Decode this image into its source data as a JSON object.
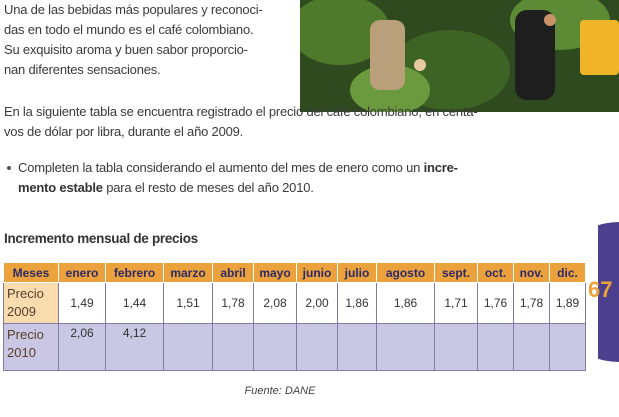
{
  "intro": {
    "lines": [
      "Una de las bebidas más populares y reconoci-",
      "das en todo el mundo es el café colombiano.",
      "Su exquisito aroma y buen sabor proporcio-",
      "nan diferentes sensaciones."
    ]
  },
  "paragraph": {
    "lines": [
      "En la siguiente tabla se encuentra registrado el precio del café colombiano, en centa-",
      "vos de dólar por libra, durante el año 2009."
    ]
  },
  "bullet": {
    "lines": [
      [
        {
          "text": "Completen la tabla considerando el aumento del mes de enero como un "
        },
        {
          "text": "incre-",
          "bold": true
        }
      ],
      [
        {
          "text": "mento estable",
          "bold": true
        },
        {
          "text": " para el resto de meses del año 2010."
        }
      ]
    ]
  },
  "table": {
    "title": "Incremento mensual de precios",
    "header": [
      "Meses",
      "enero",
      "febrero",
      "marzo",
      "abril",
      "mayo",
      "junio",
      "julio",
      "agosto",
      "sept.",
      "oct.",
      "nov.",
      "dic."
    ],
    "rows": [
      [
        "Precio 2009",
        "1,49",
        "1,44",
        "1,51",
        "1,78",
        "2,08",
        "2,00",
        "1,86",
        "1,86",
        "1,71",
        "1,76",
        "1,78",
        "1,89"
      ],
      [
        "Precio 2010",
        "2,06",
        "4,12"
      ]
    ],
    "source": "Fuente: DANE"
  },
  "page_number": "67"
}
